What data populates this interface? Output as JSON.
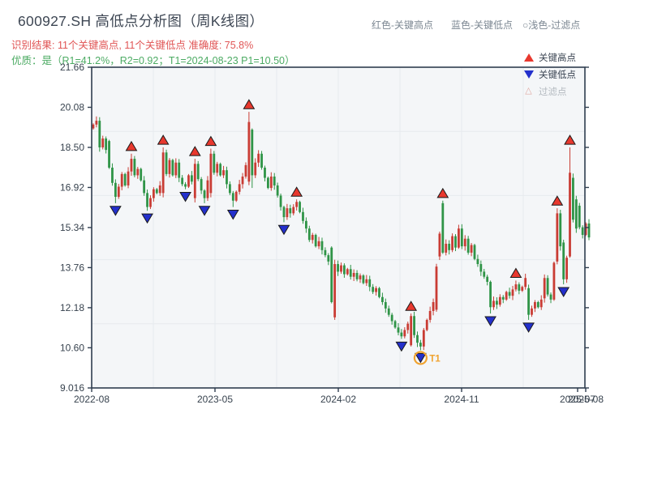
{
  "header": {
    "title": "600927.SH 高低点分析图（周K线图）",
    "result_line": "识别结果: 11个关键高点, 11个关键低点  准确度: 75.8%",
    "quality_line": "优质：是（R1=41.2%，R2=0.92；T1=2024-08-23 P1=10.50）",
    "note_high": "红色-关键高点",
    "note_low": "蓝色-关键低点",
    "note_filtered": "○浅色-过滤点"
  },
  "legend": {
    "items": [
      {
        "label": "关键高点",
        "type": "key-high",
        "disabled": false
      },
      {
        "label": "关键低点",
        "type": "key-low",
        "disabled": false
      },
      {
        "label": "过滤点",
        "type": "filtered",
        "disabled": true
      }
    ]
  },
  "colors": {
    "candle_up": "#c93c34",
    "candle_down": "#2f9447",
    "marker_high": "#e8382e",
    "marker_low": "#2330cc",
    "marker_stroke": "#1a1a1a",
    "axis": "#2f3d4f",
    "tick_text": "#37424e",
    "grid": "#e6eaee",
    "plot_bg": "#f4f6f8",
    "t1_accent": "#f0a330"
  },
  "chart_data": {
    "type": "candlestick",
    "symbol": "600927.SH",
    "period": "weekly",
    "title": "600927.SH 高低点分析图（周K线图）",
    "key_high_count": 11,
    "key_low_count": 11,
    "accuracy_pct": 75.8,
    "r1_pct": 41.2,
    "r2": 0.92,
    "t1_date": "2024-08-23",
    "p1": 10.5,
    "ylim": [
      9.016,
      21.66
    ],
    "y_ticks": [
      {
        "label": "9.016",
        "value": 9.016
      },
      {
        "label": "10.60",
        "value": 10.6
      },
      {
        "label": "12.18",
        "value": 12.18
      },
      {
        "label": "13.76",
        "value": 13.76
      },
      {
        "label": "15.34",
        "value": 15.34
      },
      {
        "label": "16.92",
        "value": 16.92
      },
      {
        "label": "18.50",
        "value": 18.5
      },
      {
        "label": "20.08",
        "value": 20.08
      },
      {
        "label": "21.66",
        "value": 21.66
      }
    ],
    "x_tick_labels": [
      "2022-08",
      "2023-05",
      "2024-02",
      "2024-11",
      "2025-07",
      "2025-08"
    ],
    "x_range": [
      "2022-08",
      "2025-08"
    ],
    "closes": [
      19.4,
      19.55,
      18.5,
      18.85,
      18.4,
      17.7,
      17.1,
      16.55,
      16.95,
      17.45,
      17.0,
      17.55,
      18.05,
      17.4,
      17.65,
      17.2,
      16.7,
      16.15,
      16.5,
      16.85,
      16.7,
      17.0,
      18.3,
      17.45,
      18.0,
      17.4,
      17.9,
      17.3,
      17.05,
      16.95,
      17.4,
      17.15,
      17.85,
      17.25,
      16.8,
      16.5,
      17.2,
      18.25,
      17.5,
      17.85,
      17.4,
      17.6,
      17.05,
      16.7,
      16.4,
      16.75,
      17.05,
      17.35,
      17.8,
      19.5,
      17.4,
      17.9,
      18.25,
      17.7,
      17.3,
      16.9,
      17.35,
      17.0,
      16.6,
      16.15,
      15.75,
      16.1,
      15.9,
      16.15,
      16.35,
      15.95,
      15.6,
      15.3,
      14.85,
      15.05,
      14.6,
      14.8,
      14.45,
      14.25,
      14.0,
      12.4,
      13.9,
      13.6,
      13.85,
      13.5,
      13.7,
      13.4,
      13.55,
      13.3,
      13.45,
      13.15,
      13.3,
      13.0,
      12.8,
      12.95,
      12.6,
      12.4,
      12.15,
      11.9,
      11.65,
      11.4,
      11.2,
      11.05,
      11.3,
      11.55,
      11.85,
      11.1,
      10.8,
      10.65,
      11.3,
      11.7,
      12.05,
      12.4,
      13.8,
      15.1,
      14.35,
      14.7,
      14.45,
      15.0,
      14.55,
      15.3,
      14.6,
      14.9,
      14.35,
      14.65,
      14.1,
      13.9,
      13.6,
      13.4,
      13.2,
      12.2,
      12.45,
      12.3,
      12.6,
      12.5,
      12.8,
      12.65,
      12.9,
      13.1,
      12.85,
      13.0,
      13.35,
      11.9,
      12.15,
      12.4,
      12.2,
      12.5,
      13.35,
      12.7,
      12.5,
      13.95,
      15.9,
      14.6,
      13.3,
      14.15,
      17.5,
      15.65,
      15.3,
      15.35,
      15.05,
      15.5,
      14.95
    ],
    "ohlc_overrides": {
      "5": {
        "open": 18.75
      },
      "7": {
        "low": 16.3
      },
      "12": {
        "high": 18.25
      },
      "17": {
        "low": 16.0
      },
      "22": {
        "open": 16.7,
        "high": 18.5
      },
      "29": {
        "low": 16.85
      },
      "32": {
        "open": 16.5,
        "high": 18.05
      },
      "35": {
        "low": 16.3
      },
      "37": {
        "open": 16.7,
        "high": 18.45
      },
      "44": {
        "low": 16.15
      },
      "49": {
        "open": 17.15,
        "high": 19.9
      },
      "50": {
        "open": 19.2,
        "low": 16.9
      },
      "60": {
        "low": 15.55
      },
      "64": {
        "high": 16.45
      },
      "75": {
        "open": 14.55
      },
      "76": {
        "open": 11.8,
        "low": 11.7
      },
      "97": {
        "low": 10.95
      },
      "100": {
        "open": 10.7,
        "high": 11.95
      },
      "103": {
        "low": 10.5
      },
      "108": {
        "open": 12.1
      },
      "109": {
        "open": 14.2
      },
      "110": {
        "open": 16.3,
        "high": 16.4
      },
      "115": {
        "high": 15.45
      },
      "125": {
        "open": 13.2,
        "low": 11.95
      },
      "133": {
        "high": 13.25
      },
      "137": {
        "open": 12.95,
        "low": 11.7
      },
      "142": {
        "open": 12.55
      },
      "146": {
        "open": 14.0,
        "high": 16.1
      },
      "148": {
        "open": 14.75,
        "low": 13.1
      },
      "150": {
        "open": 14.2,
        "high": 18.5
      },
      "151": {
        "open": 17.3
      },
      "152": {
        "open": 16.45
      },
      "153": {
        "open": 16.2
      }
    },
    "key_high_points": [
      {
        "week": 12,
        "price": 18.55
      },
      {
        "week": 22,
        "price": 18.8
      },
      {
        "week": 32,
        "price": 18.35
      },
      {
        "week": 37,
        "price": 18.75
      },
      {
        "week": 49,
        "price": 20.2
      },
      {
        "week": 64,
        "price": 16.75
      },
      {
        "week": 100,
        "price": 12.25
      },
      {
        "week": 110,
        "price": 16.7
      },
      {
        "week": 133,
        "price": 13.55
      },
      {
        "week": 146,
        "price": 16.4
      },
      {
        "week": 150,
        "price": 18.8
      }
    ],
    "key_low_points": [
      {
        "week": 7,
        "price": 16.0
      },
      {
        "week": 17,
        "price": 15.7
      },
      {
        "week": 29,
        "price": 16.55
      },
      {
        "week": 35,
        "price": 16.0
      },
      {
        "week": 44,
        "price": 15.85
      },
      {
        "week": 60,
        "price": 15.25
      },
      {
        "week": 97,
        "price": 10.65
      },
      {
        "week": 103,
        "price": 10.2
      },
      {
        "week": 125,
        "price": 11.65
      },
      {
        "week": 137,
        "price": 11.4
      },
      {
        "week": 148,
        "price": 12.8
      }
    ],
    "t1_annotation": {
      "week": 103,
      "price": 10.2,
      "label": "T1",
      "date": "2024-08-23",
      "value": 10.5
    }
  }
}
